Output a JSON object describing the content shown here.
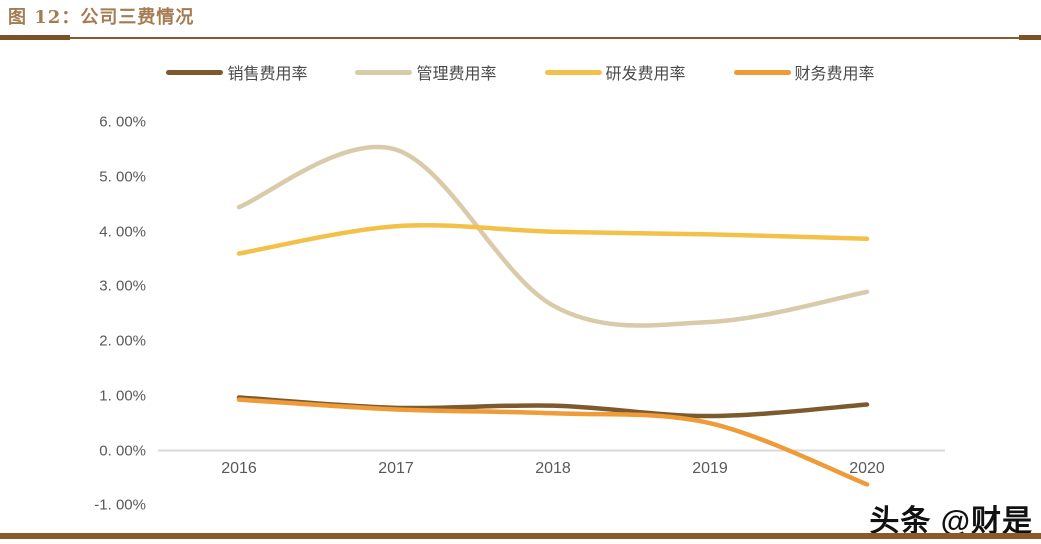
{
  "header": {
    "title": "图 12：公司三费情况"
  },
  "watermark": {
    "text": "头条 @财是"
  },
  "chart_data": {
    "type": "line",
    "title": "图 12：公司三费情况",
    "x": [
      2016,
      2017,
      2018,
      2019,
      2020
    ],
    "x_tick_labels": [
      "2016",
      "2017",
      "2018",
      "2019",
      "2020"
    ],
    "y_tick_labels": [
      "6. 00%",
      "5. 00%",
      "4. 00%",
      "3. 00%",
      "2. 00%",
      "1. 00%",
      "0. 00%",
      "-1. 00%"
    ],
    "y_tick_values": [
      6,
      5,
      4,
      3,
      2,
      1,
      0,
      -1
    ],
    "ylim": [
      -1,
      6
    ],
    "grid": false,
    "legend_position": "top",
    "axis_line_color": "#d9d9d9",
    "smoothed": true,
    "series": [
      {
        "name": "销售费用率",
        "color": "#7d5a2e",
        "values": [
          0.97,
          0.78,
          0.82,
          0.63,
          0.84
        ]
      },
      {
        "name": "管理费用率",
        "color": "#d9cba9",
        "values": [
          4.45,
          5.5,
          2.65,
          2.35,
          2.9
        ]
      },
      {
        "name": "研发费用率",
        "color": "#f3c04a",
        "values": [
          3.6,
          4.1,
          4.0,
          3.95,
          3.87
        ]
      },
      {
        "name": "财务费用率",
        "color": "#ee9b38",
        "values": [
          0.93,
          0.75,
          0.68,
          0.5,
          -0.62
        ]
      }
    ]
  }
}
